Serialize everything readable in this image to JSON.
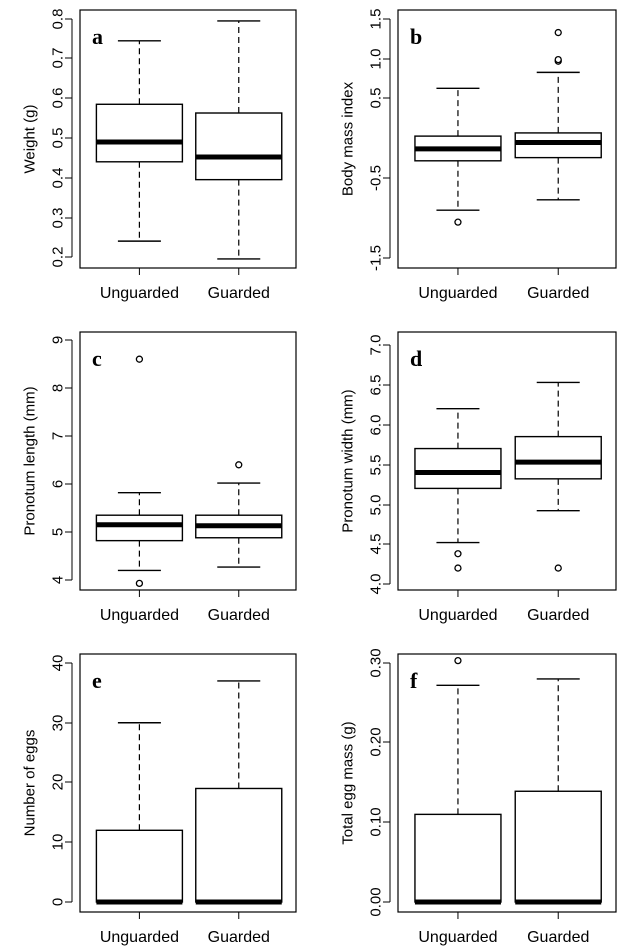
{
  "chart_data": [
    {
      "type": "boxplot",
      "letter": "a",
      "ylabel": "Weight (g)",
      "categories": [
        "Unguarded",
        "Guarded"
      ],
      "ylim": [
        0.2,
        0.8
      ],
      "yticks": [
        "0.2",
        "0.3",
        "0.4",
        "0.5",
        "0.6",
        "0.7",
        "0.8"
      ],
      "boxes": [
        {
          "whisker_low": 0.24,
          "q1": 0.44,
          "median": 0.49,
          "q3": 0.585,
          "whisker_high": 0.745,
          "outliers": []
        },
        {
          "whisker_low": 0.195,
          "q1": 0.395,
          "median": 0.452,
          "q3": 0.563,
          "whisker_high": 0.795,
          "outliers": []
        }
      ]
    },
    {
      "type": "boxplot",
      "letter": "b",
      "ylabel": "Body mass index",
      "categories": [
        "Unguarded",
        "Guarded"
      ],
      "ylim": [
        -1.5,
        1.5
      ],
      "yticks": [
        "-1.5",
        "-0.5",
        "0.5",
        "1.0",
        "1.5"
      ],
      "boxes": [
        {
          "whisker_low": -0.9,
          "q1": -0.28,
          "median": -0.13,
          "q3": 0.03,
          "whisker_high": 0.63,
          "outliers": [
            -1.05
          ]
        },
        {
          "whisker_low": -0.77,
          "q1": -0.24,
          "median": -0.05,
          "q3": 0.07,
          "whisker_high": 0.83,
          "outliers": [
            0.97,
            0.99,
            1.33
          ]
        }
      ]
    },
    {
      "type": "boxplot",
      "letter": "c",
      "ylabel": "Pronotum length (mm)",
      "categories": [
        "Unguarded",
        "Guarded"
      ],
      "ylim": [
        4,
        9
      ],
      "yticks": [
        "4",
        "5",
        "6",
        "7",
        "8",
        "9"
      ],
      "boxes": [
        {
          "whisker_low": 4.2,
          "q1": 4.82,
          "median": 5.15,
          "q3": 5.35,
          "whisker_high": 5.82,
          "outliers": [
            3.93,
            8.6
          ]
        },
        {
          "whisker_low": 4.27,
          "q1": 4.88,
          "median": 5.13,
          "q3": 5.35,
          "whisker_high": 6.02,
          "outliers": [
            6.4
          ]
        }
      ]
    },
    {
      "type": "boxplot",
      "letter": "d",
      "ylabel": "Pronotum width (mm)",
      "categories": [
        "Unguarded",
        "Guarded"
      ],
      "ylim": [
        4.0,
        7.0
      ],
      "yticks": [
        "4.0",
        "4.5",
        "5.0",
        "5.5",
        "6.0",
        "6.5",
        "7.0"
      ],
      "boxes": [
        {
          "whisker_low": 4.52,
          "q1": 5.2,
          "median": 5.4,
          "q3": 5.7,
          "whisker_high": 6.2,
          "outliers": [
            4.38,
            4.2
          ]
        },
        {
          "whisker_low": 4.92,
          "q1": 5.32,
          "median": 5.53,
          "q3": 5.85,
          "whisker_high": 6.53,
          "outliers": [
            4.2
          ]
        }
      ]
    },
    {
      "type": "boxplot",
      "letter": "e",
      "ylabel": "Number of eggs",
      "categories": [
        "Unguarded",
        "Guarded"
      ],
      "ylim": [
        0,
        40
      ],
      "yticks": [
        "0",
        "10",
        "20",
        "30",
        "40"
      ],
      "boxes": [
        {
          "whisker_low": 0,
          "q1": 0,
          "median": 0,
          "q3": 12,
          "whisker_high": 30,
          "outliers": []
        },
        {
          "whisker_low": 0,
          "q1": 0,
          "median": 0,
          "q3": 19,
          "whisker_high": 37,
          "outliers": []
        }
      ]
    },
    {
      "type": "boxplot",
      "letter": "f",
      "ylabel": "Total egg mass (g)",
      "categories": [
        "Unguarded",
        "Guarded"
      ],
      "ylim": [
        0.0,
        0.3
      ],
      "yticks": [
        "0.00",
        "0.10",
        "0.20",
        "0.30"
      ],
      "boxes": [
        {
          "whisker_low": 0,
          "q1": 0,
          "median": 0,
          "q3": 0.11,
          "whisker_high": 0.272,
          "outliers": [
            0.303
          ]
        },
        {
          "whisker_low": 0,
          "q1": 0,
          "median": 0,
          "q3": 0.139,
          "whisker_high": 0.28,
          "outliers": []
        }
      ]
    }
  ]
}
